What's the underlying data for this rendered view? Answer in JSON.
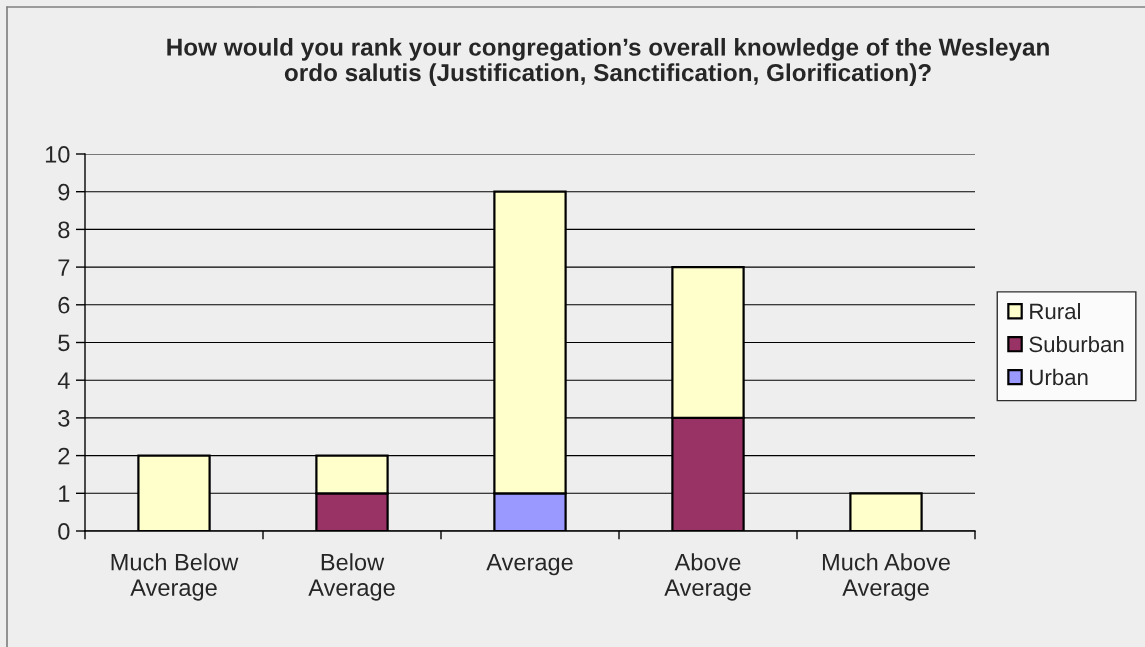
{
  "chart_data": {
    "type": "bar",
    "title": "How would you rank your congregation’s overall knowledge of the Wesleyan\nordo salutis (Justification, Sanctification, Glorification)?",
    "categories": [
      "Much Below\nAverage",
      "Below\nAverage",
      "Average",
      "Above\nAverage",
      "Much Above\nAverage"
    ],
    "stacked": true,
    "series": [
      {
        "name": "Urban",
        "color": "#9999ff",
        "values": [
          0,
          0,
          1,
          0,
          0
        ]
      },
      {
        "name": "Suburban",
        "color": "#993366",
        "values": [
          0,
          1,
          0,
          3,
          0
        ]
      },
      {
        "name": "Rural",
        "color": "#ffffcc",
        "values": [
          2,
          1,
          8,
          4,
          1
        ]
      }
    ],
    "ylim": [
      0,
      10
    ],
    "yticks": [
      0,
      1,
      2,
      3,
      4,
      5,
      6,
      7,
      8,
      9,
      10
    ],
    "grid": "y",
    "legend": "right"
  }
}
